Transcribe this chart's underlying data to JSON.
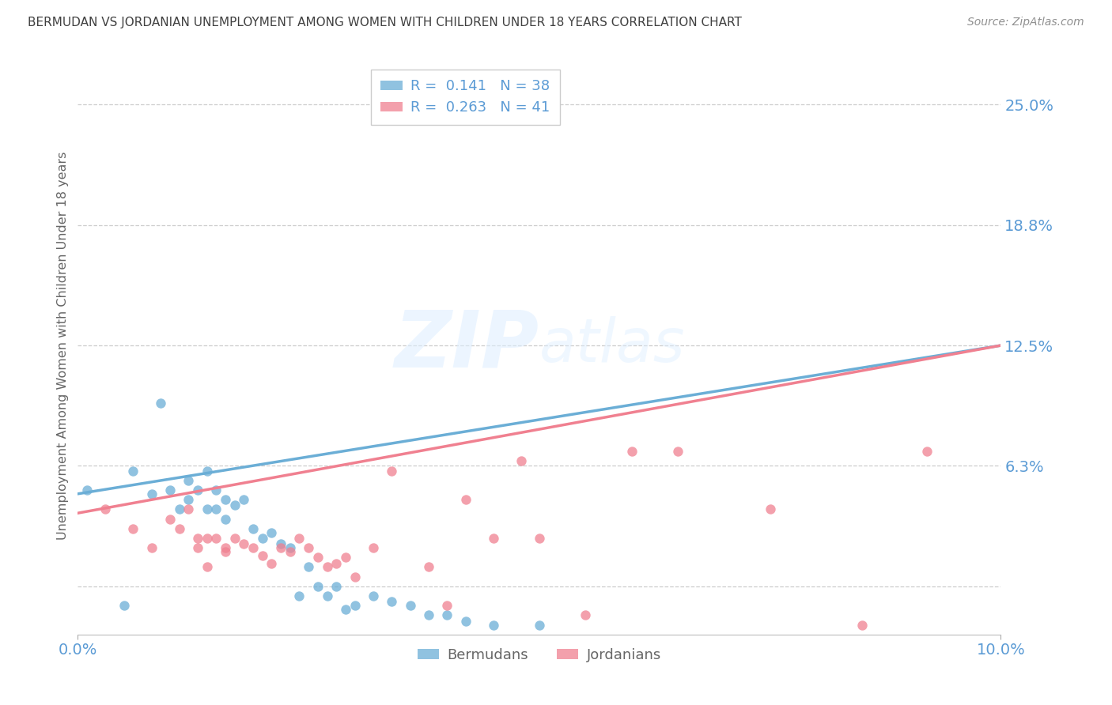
{
  "title": "BERMUDAN VS JORDANIAN UNEMPLOYMENT AMONG WOMEN WITH CHILDREN UNDER 18 YEARS CORRELATION CHART",
  "source": "Source: ZipAtlas.com",
  "ylabel": "Unemployment Among Women with Children Under 18 years",
  "xlim": [
    0.0,
    0.1
  ],
  "ylim": [
    -0.025,
    0.275
  ],
  "right_ytick_vals": [
    0.0,
    0.0625,
    0.125,
    0.1875,
    0.25
  ],
  "right_ytick_labels": [
    "",
    "6.3%",
    "12.5%",
    "18.8%",
    "25.0%"
  ],
  "bermudans_color": "#6baed6",
  "jordanians_color": "#f08090",
  "background_color": "#ffffff",
  "grid_color": "#c8c8c8",
  "axis_label_color": "#5b9bd5",
  "title_color": "#404040",
  "source_color": "#909090",
  "bermudans_x": [
    0.001,
    0.005,
    0.006,
    0.008,
    0.009,
    0.01,
    0.011,
    0.012,
    0.012,
    0.013,
    0.014,
    0.014,
    0.015,
    0.015,
    0.016,
    0.016,
    0.017,
    0.018,
    0.019,
    0.02,
    0.021,
    0.022,
    0.023,
    0.024,
    0.025,
    0.026,
    0.027,
    0.028,
    0.029,
    0.03,
    0.032,
    0.034,
    0.036,
    0.038,
    0.04,
    0.042,
    0.045,
    0.05
  ],
  "bermudans_y": [
    0.05,
    -0.01,
    0.06,
    0.048,
    0.095,
    0.05,
    0.04,
    0.055,
    0.045,
    0.05,
    0.06,
    0.04,
    0.05,
    0.04,
    0.045,
    0.035,
    0.042,
    0.045,
    0.03,
    0.025,
    0.028,
    0.022,
    0.02,
    -0.005,
    0.01,
    0.0,
    -0.005,
    0.0,
    -0.012,
    -0.01,
    -0.005,
    -0.008,
    -0.01,
    -0.015,
    -0.015,
    -0.018,
    -0.02,
    -0.02
  ],
  "jordanians_x": [
    0.003,
    0.006,
    0.008,
    0.01,
    0.011,
    0.012,
    0.013,
    0.013,
    0.014,
    0.014,
    0.015,
    0.016,
    0.016,
    0.017,
    0.018,
    0.019,
    0.02,
    0.021,
    0.022,
    0.023,
    0.024,
    0.025,
    0.026,
    0.027,
    0.028,
    0.029,
    0.03,
    0.032,
    0.034,
    0.038,
    0.04,
    0.042,
    0.045,
    0.048,
    0.05,
    0.055,
    0.06,
    0.065,
    0.075,
    0.085,
    0.092
  ],
  "jordanians_y": [
    0.04,
    0.03,
    0.02,
    0.035,
    0.03,
    0.04,
    0.02,
    0.025,
    0.01,
    0.025,
    0.025,
    0.02,
    0.018,
    0.025,
    0.022,
    0.02,
    0.016,
    0.012,
    0.02,
    0.018,
    0.025,
    0.02,
    0.015,
    0.01,
    0.012,
    0.015,
    0.005,
    0.02,
    0.06,
    0.01,
    -0.01,
    0.045,
    0.025,
    0.065,
    0.025,
    -0.015,
    0.07,
    0.07,
    0.04,
    -0.02,
    0.07
  ]
}
